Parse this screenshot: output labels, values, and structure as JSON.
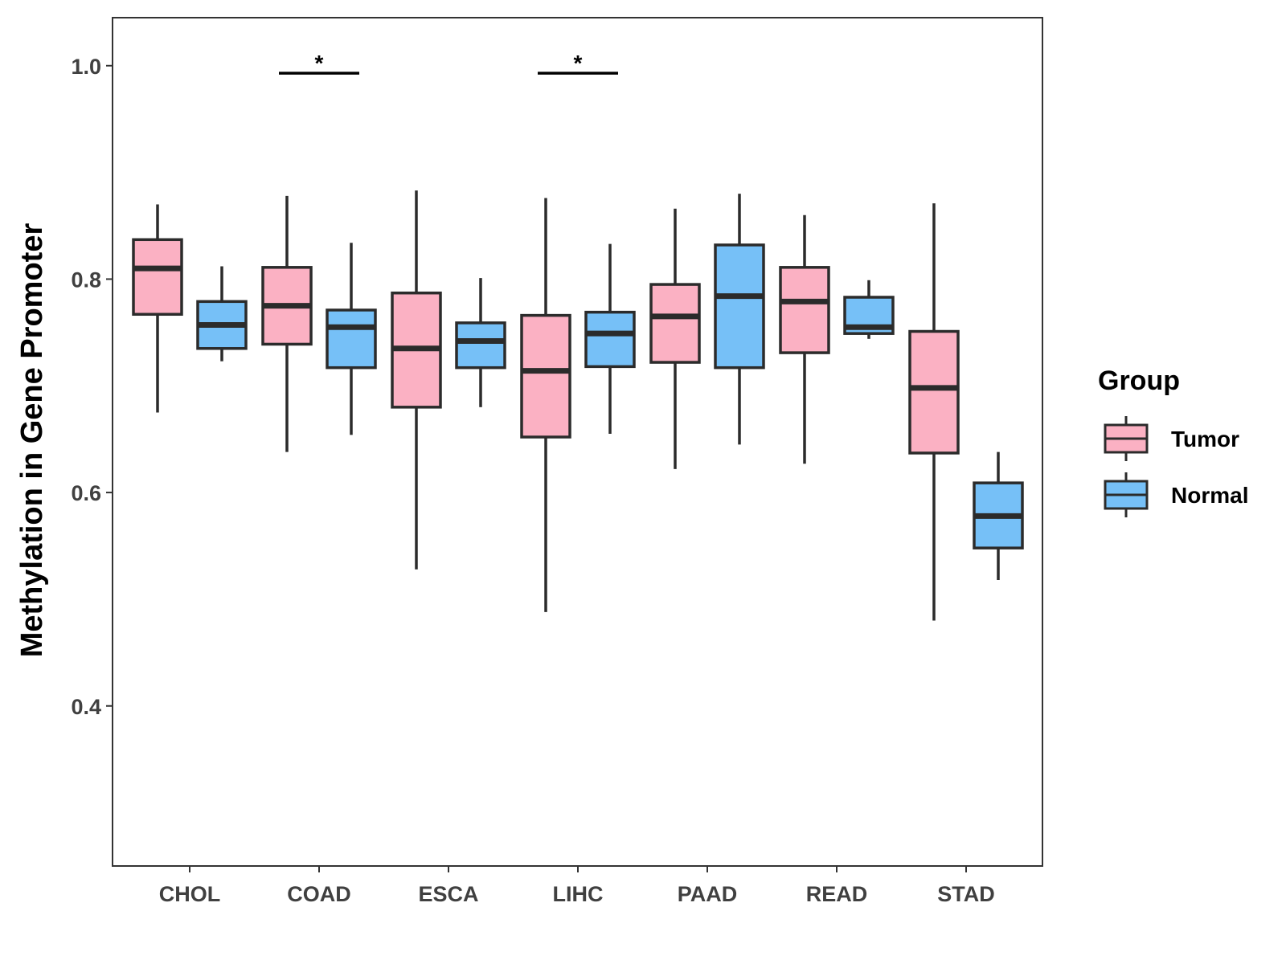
{
  "chart_data": {
    "type": "boxplot",
    "ylabel": "Methylation in Gene Promoter",
    "xlabel": "",
    "ylim": [
      0.25,
      1.045
    ],
    "yticks": [
      0.4,
      0.6,
      0.8,
      1.0
    ],
    "ytick_labels": [
      "0.4",
      "0.6",
      "0.8",
      "1.0"
    ],
    "categories": [
      "CHOL",
      "COAD",
      "ESCA",
      "LIHC",
      "PAAD",
      "READ",
      "STAD"
    ],
    "legend": {
      "title": "Group",
      "position": "right",
      "entries": [
        {
          "name": "Tumor",
          "color": "#FBB1C3"
        },
        {
          "name": "Normal",
          "color": "#76C0F7"
        }
      ]
    },
    "series": [
      {
        "name": "Tumor",
        "color": "#FBB1C3",
        "boxes": [
          {
            "whisker_low": 0.675,
            "q1": 0.767,
            "median": 0.81,
            "q3": 0.837,
            "whisker_high": 0.87
          },
          {
            "whisker_low": 0.638,
            "q1": 0.739,
            "median": 0.775,
            "q3": 0.811,
            "whisker_high": 0.878
          },
          {
            "whisker_low": 0.528,
            "q1": 0.68,
            "median": 0.735,
            "q3": 0.787,
            "whisker_high": 0.883
          },
          {
            "whisker_low": 0.488,
            "q1": 0.652,
            "median": 0.714,
            "q3": 0.766,
            "whisker_high": 0.876
          },
          {
            "whisker_low": 0.622,
            "q1": 0.722,
            "median": 0.765,
            "q3": 0.795,
            "whisker_high": 0.866
          },
          {
            "whisker_low": 0.627,
            "q1": 0.731,
            "median": 0.779,
            "q3": 0.811,
            "whisker_high": 0.86
          },
          {
            "whisker_low": 0.48,
            "q1": 0.637,
            "median": 0.698,
            "q3": 0.751,
            "whisker_high": 0.871
          }
        ]
      },
      {
        "name": "Normal",
        "color": "#76C0F7",
        "boxes": [
          {
            "whisker_low": 0.723,
            "q1": 0.735,
            "median": 0.757,
            "q3": 0.779,
            "whisker_high": 0.812
          },
          {
            "whisker_low": 0.654,
            "q1": 0.717,
            "median": 0.755,
            "q3": 0.771,
            "whisker_high": 0.834
          },
          {
            "whisker_low": 0.68,
            "q1": 0.717,
            "median": 0.742,
            "q3": 0.759,
            "whisker_high": 0.801
          },
          {
            "whisker_low": 0.655,
            "q1": 0.718,
            "median": 0.749,
            "q3": 0.769,
            "whisker_high": 0.833
          },
          {
            "whisker_low": 0.645,
            "q1": 0.717,
            "median": 0.784,
            "q3": 0.832,
            "whisker_high": 0.88
          },
          {
            "whisker_low": 0.744,
            "q1": 0.749,
            "median": 0.755,
            "q3": 0.783,
            "whisker_high": 0.799
          },
          {
            "whisker_low": 0.518,
            "q1": 0.548,
            "median": 0.578,
            "q3": 0.609,
            "whisker_high": 0.638
          }
        ]
      }
    ],
    "annotations": [
      {
        "category": "COAD",
        "text": "*",
        "y": 0.993
      },
      {
        "category": "LIHC",
        "text": "*",
        "y": 0.993
      }
    ]
  }
}
